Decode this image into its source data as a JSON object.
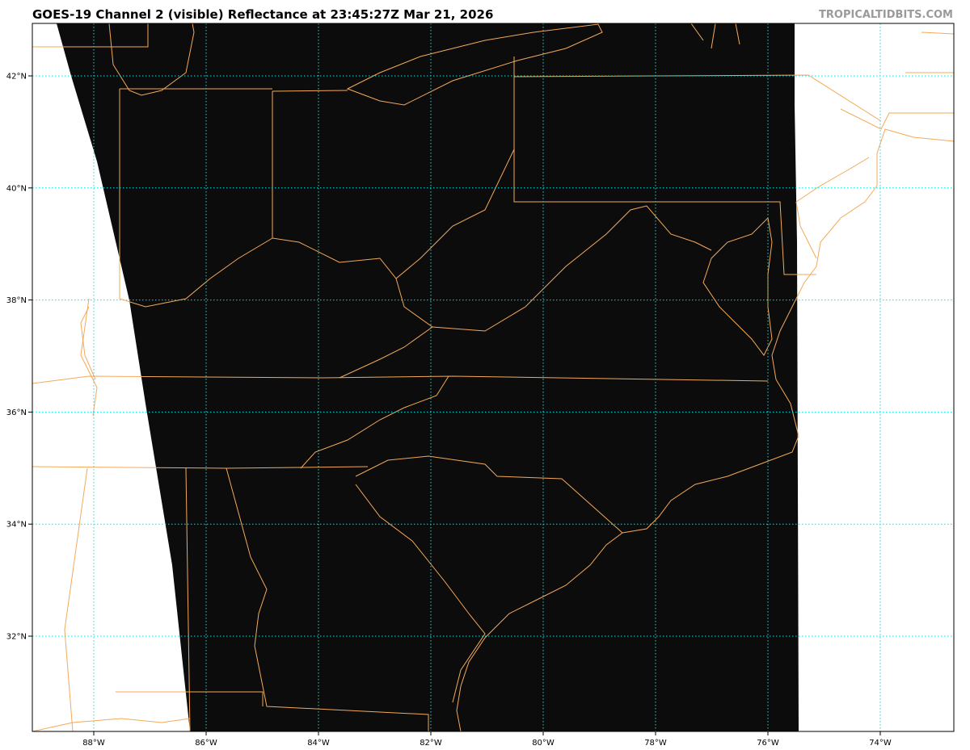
{
  "header": {
    "title": "GOES-19 Channel 2 (visible) Reflectance at 23:45:27Z Mar 21, 2026",
    "watermark": "TROPICALTIDBITS.COM"
  },
  "map": {
    "product": "GOES-19 Channel 2 (visible) Reflectance",
    "extent": {
      "lon": [
        -89.1,
        -72.7
      ],
      "lat": [
        30.3,
        42.9
      ]
    },
    "lat_labels": [
      "42°N",
      "40°N",
      "38°N",
      "36°N",
      "34°N",
      "32°N"
    ],
    "lon_labels": [
      "88°W",
      "86°W",
      "84°W",
      "82°W",
      "80°W",
      "78°W",
      "76°W",
      "74°W"
    ],
    "gridline_color": "#00e5e5",
    "border_color": "#f4a95a",
    "imagery_color": "#0c0c0c"
  }
}
